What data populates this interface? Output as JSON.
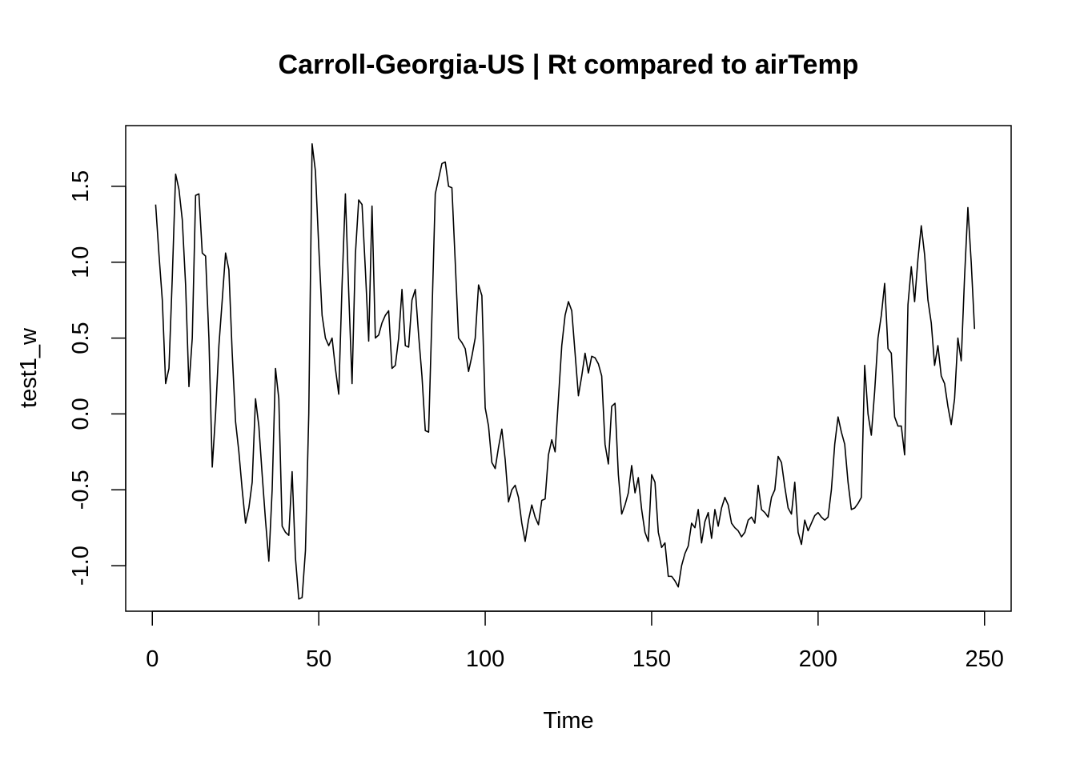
{
  "chart_data": {
    "type": "line",
    "title": "Carroll-Georgia-US | Rt compared to airTemp",
    "xlabel": "Time",
    "ylabel": "test1_w",
    "xlim": [
      -8,
      258
    ],
    "ylim": [
      -1.3,
      1.9
    ],
    "x_ticks": [
      0,
      50,
      100,
      150,
      200,
      250
    ],
    "y_ticks": [
      -1.0,
      -0.5,
      0.0,
      0.5,
      1.0,
      1.5
    ],
    "x_tick_labels": [
      "0",
      "50",
      "100",
      "150",
      "200",
      "250"
    ],
    "y_tick_labels": [
      "-1.0",
      "-0.5",
      "0.0",
      "0.5",
      "1.0",
      "1.5"
    ],
    "line_color": "#000000",
    "grid": false,
    "x_start": 1,
    "values": [
      1.38,
      1.05,
      0.75,
      0.2,
      0.3,
      0.9,
      1.58,
      1.48,
      1.28,
      0.85,
      0.18,
      0.5,
      1.44,
      1.45,
      1.06,
      1.04,
      0.5,
      -0.35,
      0.0,
      0.45,
      0.75,
      1.06,
      0.95,
      0.4,
      -0.05,
      -0.25,
      -0.5,
      -0.72,
      -0.62,
      -0.45,
      0.1,
      -0.08,
      -0.4,
      -0.7,
      -0.97,
      -0.5,
      0.3,
      0.1,
      -0.74,
      -0.78,
      -0.8,
      -0.38,
      -0.95,
      -1.22,
      -1.21,
      -0.9,
      0.0,
      1.78,
      1.6,
      1.1,
      0.65,
      0.5,
      0.45,
      0.5,
      0.3,
      0.13,
      0.85,
      1.45,
      0.8,
      0.2,
      1.05,
      1.41,
      1.38,
      0.95,
      0.48,
      1.37,
      0.5,
      0.52,
      0.6,
      0.65,
      0.68,
      0.3,
      0.32,
      0.5,
      0.82,
      0.45,
      0.44,
      0.75,
      0.82,
      0.52,
      0.25,
      -0.11,
      -0.12,
      0.65,
      1.45,
      1.55,
      1.65,
      1.66,
      1.5,
      1.49,
      1.0,
      0.5,
      0.47,
      0.43,
      0.28,
      0.38,
      0.5,
      0.85,
      0.78,
      0.04,
      -0.08,
      -0.32,
      -0.36,
      -0.22,
      -0.1,
      -0.3,
      -0.58,
      -0.5,
      -0.47,
      -0.55,
      -0.72,
      -0.84,
      -0.7,
      -0.6,
      -0.68,
      -0.73,
      -0.57,
      -0.56,
      -0.27,
      -0.17,
      -0.25,
      0.1,
      0.45,
      0.65,
      0.74,
      0.68,
      0.4,
      0.12,
      0.25,
      0.4,
      0.27,
      0.38,
      0.37,
      0.33,
      0.25,
      -0.2,
      -0.33,
      0.05,
      0.07,
      -0.4,
      -0.66,
      -0.6,
      -0.52,
      -0.34,
      -0.52,
      -0.42,
      -0.63,
      -0.78,
      -0.84,
      -0.4,
      -0.45,
      -0.78,
      -0.88,
      -0.85,
      -1.07,
      -1.07,
      -1.1,
      -1.14,
      -1.0,
      -0.92,
      -0.87,
      -0.72,
      -0.75,
      -0.63,
      -0.85,
      -0.71,
      -0.65,
      -0.82,
      -0.63,
      -0.74,
      -0.62,
      -0.55,
      -0.6,
      -0.72,
      -0.75,
      -0.77,
      -0.81,
      -0.78,
      -0.7,
      -0.68,
      -0.72,
      -0.47,
      -0.63,
      -0.65,
      -0.68,
      -0.55,
      -0.5,
      -0.28,
      -0.32,
      -0.48,
      -0.62,
      -0.66,
      -0.45,
      -0.78,
      -0.86,
      -0.7,
      -0.77,
      -0.72,
      -0.67,
      -0.65,
      -0.68,
      -0.7,
      -0.68,
      -0.5,
      -0.2,
      -0.02,
      -0.12,
      -0.2,
      -0.45,
      -0.63,
      -0.62,
      -0.59,
      -0.55,
      0.32,
      0.0,
      -0.14,
      0.15,
      0.5,
      0.65,
      0.86,
      0.43,
      0.4,
      -0.02,
      -0.08,
      -0.08,
      -0.27,
      0.72,
      0.97,
      0.74,
      1.02,
      1.24,
      1.05,
      0.75,
      0.6,
      0.32,
      0.45,
      0.25,
      0.2,
      0.05,
      -0.07,
      0.1,
      0.5,
      0.35,
      0.9,
      1.36,
      1.0,
      0.56
    ]
  }
}
